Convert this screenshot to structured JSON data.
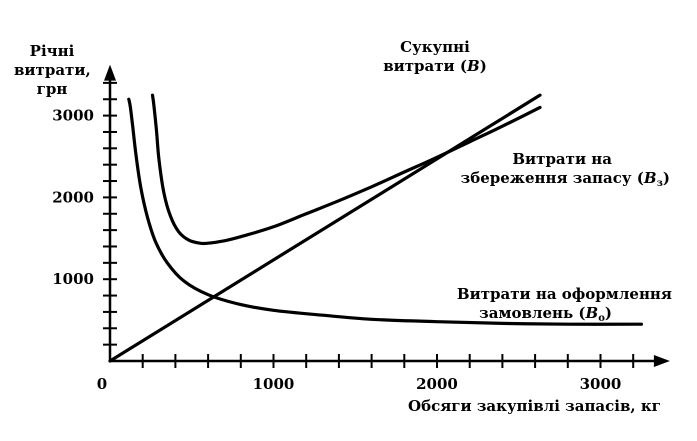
{
  "chart_data": {
    "type": "line",
    "ylabel_lines": [
      "Річні",
      "витрати,",
      "грн"
    ],
    "xlabel": "Обсяги закупівлі запасів, кг",
    "xlim": [
      0,
      3400
    ],
    "ylim": [
      0,
      3550
    ],
    "x_ticks": [
      0,
      1000,
      2000,
      3000
    ],
    "x_tick_labels": [
      "0",
      "1000",
      "2000",
      "3000"
    ],
    "y_ticks": [
      1000,
      2000,
      3000
    ],
    "y_tick_labels": [
      "1000",
      "2000",
      "3000"
    ],
    "x_minor_step": 200,
    "y_minor_step": 200,
    "grid": false,
    "series": [
      {
        "key": "total",
        "name_lines": [
          "Сукупні",
          "витрати ("
        ],
        "name_symbol": "B",
        "name_sub": "",
        "name_tail": ")",
        "x": [
          260,
          270,
          285,
          300,
          330,
          370,
          420,
          480,
          550,
          600,
          700,
          800,
          1000,
          1200,
          1400,
          1600,
          1800,
          2000,
          2200,
          2400,
          2630
        ],
        "y": [
          3250,
          3100,
          2800,
          2450,
          2050,
          1770,
          1580,
          1480,
          1440,
          1440,
          1470,
          1520,
          1640,
          1800,
          1960,
          2130,
          2310,
          2490,
          2680,
          2870,
          3100
        ]
      },
      {
        "key": "storage",
        "name_lines": [
          "Витрати на",
          "збереження запасу ("
        ],
        "name_symbol": "B",
        "name_sub": "з",
        "name_tail": ")",
        "x": [
          0,
          2630
        ],
        "y": [
          0,
          3250
        ]
      },
      {
        "key": "ordering",
        "name_lines": [
          "Витрати на оформлення",
          "замовлень ("
        ],
        "name_symbol": "B",
        "name_sub": "о",
        "name_tail": ")",
        "x": [
          115,
          125,
          140,
          160,
          190,
          230,
          280,
          350,
          450,
          600,
          800,
          1000,
          1300,
          1600,
          2000,
          2400,
          2800,
          3250
        ],
        "y": [
          3200,
          3100,
          2850,
          2500,
          2100,
          1750,
          1450,
          1200,
          980,
          810,
          690,
          620,
          560,
          510,
          480,
          460,
          450,
          450
        ]
      }
    ]
  }
}
